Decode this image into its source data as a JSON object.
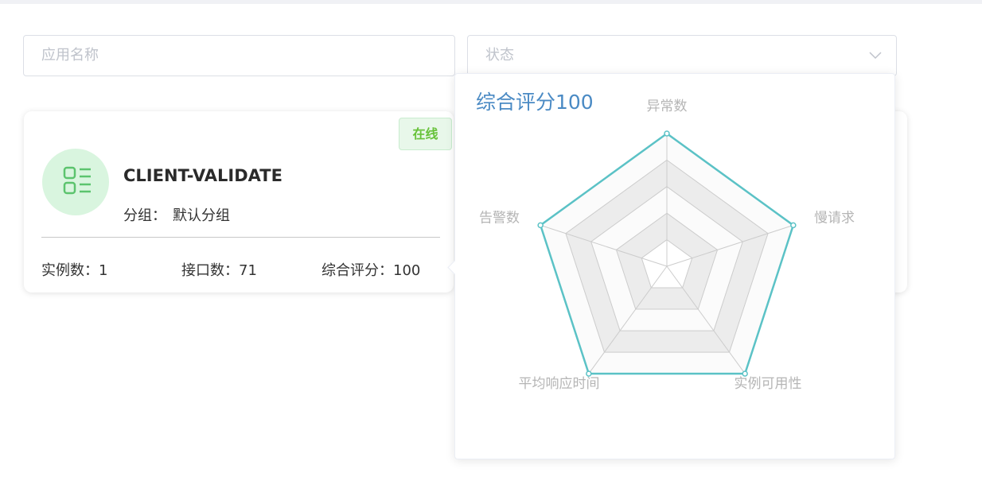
{
  "search": {
    "app_name_placeholder": "应用名称",
    "status_placeholder": "状态"
  },
  "card": {
    "status": "在线",
    "name": "CLIENT-VALIDATE",
    "group_label": "分组：",
    "group": "默认分组",
    "instances_label": "实例数：",
    "instances": 1,
    "apis_label": "接口数：",
    "apis": 71,
    "score_label": "综合评分：",
    "score": 100
  },
  "chart_data": {
    "type": "radar",
    "title": "综合评分100",
    "indicators": [
      "异常数",
      "慢请求",
      "实例可用性",
      "平均响应时间",
      "告警数"
    ],
    "values": [
      100,
      100,
      100,
      100,
      100
    ],
    "rlim": [
      0,
      100
    ],
    "rticks": [
      20,
      40,
      60,
      80,
      100
    ],
    "color": "#5bc2c6"
  }
}
